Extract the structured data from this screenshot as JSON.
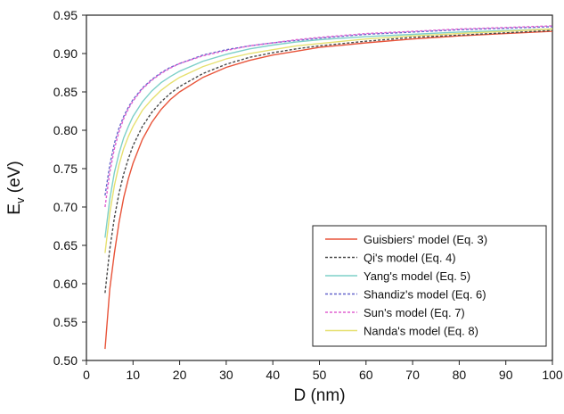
{
  "chart_data": {
    "type": "line",
    "xlabel": "D (nm)",
    "ylabel": {
      "main": "E",
      "subscript": "v",
      "unit": " (eV)"
    },
    "xlim": [
      0,
      100
    ],
    "ylim": [
      0.5,
      0.95
    ],
    "xticks": [
      0,
      10,
      20,
      30,
      40,
      50,
      60,
      70,
      80,
      90,
      100
    ],
    "yticks": [
      0.5,
      0.55,
      0.6,
      0.65,
      0.7,
      0.75,
      0.8,
      0.85,
      0.9,
      0.95
    ],
    "xtick_labels": [
      "0",
      "10",
      "20",
      "30",
      "40",
      "50",
      "60",
      "70",
      "80",
      "90",
      "100"
    ],
    "ytick_labels": [
      "0.50",
      "0.55",
      "0.60",
      "0.65",
      "0.70",
      "0.75",
      "0.80",
      "0.85",
      "0.90",
      "0.95"
    ],
    "grid": false,
    "legend_position": "bottom-right",
    "x": [
      4,
      5,
      6,
      7,
      8,
      9,
      10,
      12,
      14,
      16,
      18,
      20,
      25,
      30,
      35,
      40,
      45,
      50,
      60,
      70,
      80,
      90,
      100
    ],
    "series": [
      {
        "name": "Guisbiers' model (Eq. 3)",
        "color": "#e8543a",
        "dash": "solid",
        "values": [
          0.515,
          0.593,
          0.64,
          0.68,
          0.712,
          0.737,
          0.757,
          0.788,
          0.81,
          0.827,
          0.84,
          0.85,
          0.869,
          0.882,
          0.891,
          0.898,
          0.903,
          0.908,
          0.914,
          0.919,
          0.923,
          0.926,
          0.929
        ]
      },
      {
        "name": "Qi's model (Eq. 4)",
        "color": "#4a4a4a",
        "dash": "dashed",
        "values": [
          0.588,
          0.645,
          0.686,
          0.718,
          0.743,
          0.763,
          0.78,
          0.805,
          0.823,
          0.837,
          0.848,
          0.857,
          0.874,
          0.886,
          0.895,
          0.901,
          0.906,
          0.91,
          0.916,
          0.921,
          0.924,
          0.927,
          0.93
        ]
      },
      {
        "name": "Yang's model (Eq. 5)",
        "color": "#7ed0c8",
        "dash": "solid",
        "values": [
          0.66,
          0.71,
          0.745,
          0.77,
          0.79,
          0.805,
          0.818,
          0.837,
          0.851,
          0.862,
          0.87,
          0.877,
          0.89,
          0.899,
          0.906,
          0.911,
          0.915,
          0.918,
          0.922,
          0.925,
          0.928,
          0.93,
          0.932
        ]
      },
      {
        "name": "Shandiz's model (Eq. 6)",
        "color": "#6666cc",
        "dash": "dashed",
        "values": [
          0.715,
          0.755,
          0.783,
          0.803,
          0.818,
          0.83,
          0.84,
          0.855,
          0.866,
          0.875,
          0.882,
          0.887,
          0.898,
          0.905,
          0.91,
          0.914,
          0.917,
          0.92,
          0.925,
          0.928,
          0.931,
          0.933,
          0.935
        ]
      },
      {
        "name": "Sun's model (Eq. 7)",
        "color": "#e060d0",
        "dash": "dashed",
        "values": [
          0.7,
          0.745,
          0.776,
          0.798,
          0.815,
          0.828,
          0.838,
          0.854,
          0.865,
          0.874,
          0.881,
          0.887,
          0.897,
          0.904,
          0.91,
          0.914,
          0.918,
          0.921,
          0.926,
          0.929,
          0.932,
          0.934,
          0.936
        ]
      },
      {
        "name": "Nanda's model (Eq. 8)",
        "color": "#e6e070",
        "dash": "solid",
        "values": [
          0.64,
          0.692,
          0.728,
          0.755,
          0.776,
          0.792,
          0.805,
          0.826,
          0.84,
          0.852,
          0.861,
          0.869,
          0.883,
          0.893,
          0.9,
          0.905,
          0.91,
          0.913,
          0.919,
          0.923,
          0.926,
          0.929,
          0.932
        ]
      }
    ]
  }
}
